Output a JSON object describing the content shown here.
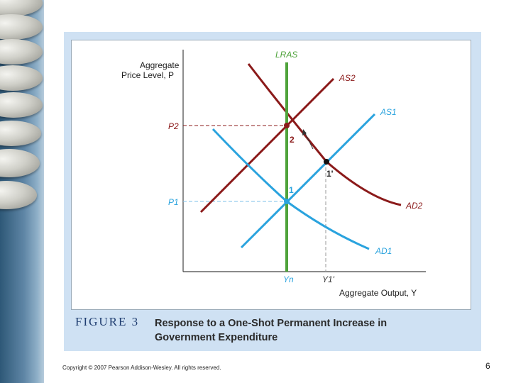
{
  "figure": {
    "number_label": "FIGURE 3",
    "caption": "Response to a One-Shot Permanent Increase in Government Expenditure"
  },
  "axes": {
    "y_label_line1": "Aggregate",
    "y_label_line2": "Price Level, P",
    "x_label": "Aggregate Output, Y"
  },
  "curves": {
    "lras": "LRAS",
    "as2": "AS2",
    "as1": "AS1",
    "ad1": "AD1",
    "ad2": "AD2"
  },
  "ticks": {
    "p2": "P2",
    "p1": "P1",
    "yn": "Yn",
    "y1prime": "Y1'"
  },
  "points": {
    "point1": "1",
    "point1prime": "1'",
    "point2": "2"
  },
  "footer": {
    "copyright": "Copyright © 2007 Pearson Addison-Wesley. All rights reserved.",
    "page_number": "6"
  },
  "colors": {
    "lras": "#4fa33b",
    "red_curves": "#8b1a1a",
    "blue_curves": "#2aa3de",
    "panel": "#cfe1f3"
  }
}
